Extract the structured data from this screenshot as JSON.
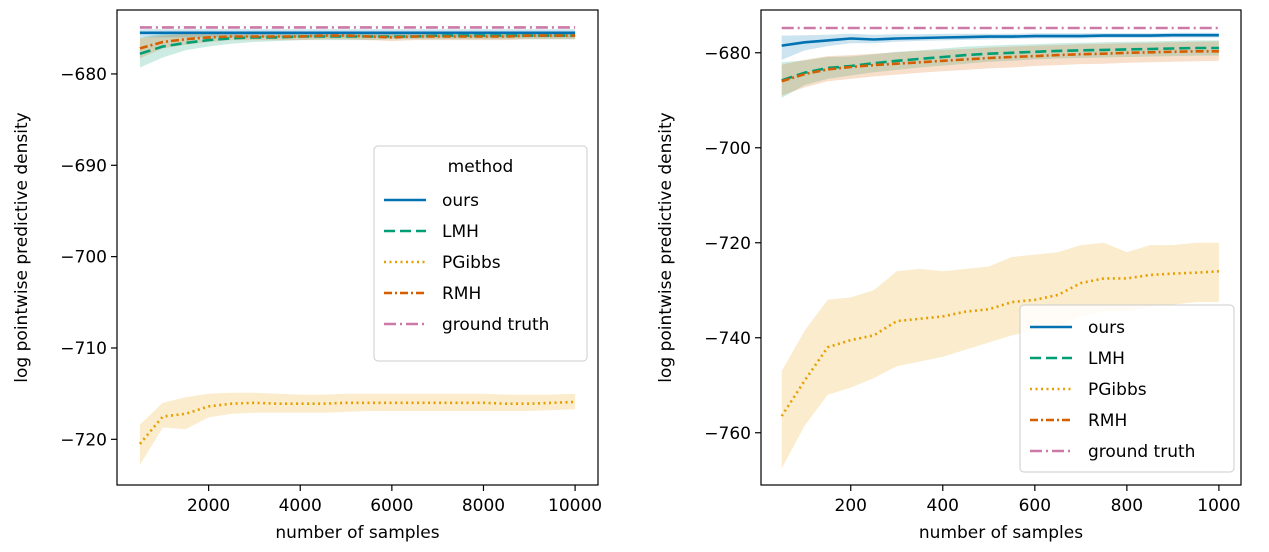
{
  "colors": {
    "ours": "#0072b2",
    "LMH": "#009e73",
    "PGibbs": "#e69f00",
    "RMH": "#d55e00",
    "ground_truth": "#cc79a7"
  },
  "chart_data": [
    {
      "type": "line",
      "xlabel": "number of samples",
      "ylabel": "log pointwise predictive density",
      "xlim": [
        0,
        10500
      ],
      "ylim": [
        -725,
        -673
      ],
      "xticks": [
        2000,
        4000,
        6000,
        8000,
        10000
      ],
      "yticks": [
        -720,
        -710,
        -700,
        -690,
        -680
      ],
      "legend": {
        "title": "method",
        "placement": "center-right"
      },
      "series": [
        {
          "name": "ours",
          "key": "ours",
          "style": "solid",
          "x": [
            500,
            1000,
            1500,
            2000,
            2500,
            3000,
            3500,
            4000,
            4500,
            5000,
            5500,
            6000,
            6500,
            7000,
            7500,
            8000,
            8500,
            9000,
            9500,
            10000
          ],
          "y": [
            -675.5,
            -675.5,
            -675.5,
            -675.5,
            -675.5,
            -675.5,
            -675.5,
            -675.5,
            -675.5,
            -675.5,
            -675.5,
            -675.5,
            -675.5,
            -675.5,
            -675.5,
            -675.5,
            -675.5,
            -675.5,
            -675.5,
            -675.5
          ],
          "lower": [
            -676.0,
            -676.0,
            -676.0,
            -676.0,
            -676.0,
            -676.0,
            -676.0,
            -676.0,
            -676.0,
            -676.0,
            -676.0,
            -676.0,
            -676.0,
            -676.0,
            -676.0,
            -676.0,
            -676.0,
            -676.0,
            -676.0,
            -676.0
          ],
          "upper": [
            -675.1,
            -675.1,
            -675.1,
            -675.1,
            -675.1,
            -675.1,
            -675.1,
            -675.1,
            -675.1,
            -675.1,
            -675.1,
            -675.1,
            -675.1,
            -675.1,
            -675.1,
            -675.1,
            -675.1,
            -675.1,
            -675.1,
            -675.1
          ]
        },
        {
          "name": "LMH",
          "key": "LMH",
          "style": "dashed",
          "x": [
            500,
            1000,
            1500,
            2000,
            2500,
            3000,
            3500,
            4000,
            4500,
            5000,
            5500,
            6000,
            6500,
            7000,
            7500,
            8000,
            8500,
            9000,
            9500,
            10000
          ],
          "y": [
            -677.8,
            -677.0,
            -676.6,
            -676.3,
            -676.1,
            -676.0,
            -676.0,
            -675.9,
            -675.9,
            -675.9,
            -675.9,
            -675.9,
            -675.9,
            -675.8,
            -675.8,
            -675.8,
            -675.8,
            -675.8,
            -675.8,
            -675.8
          ],
          "lower": [
            -679.3,
            -678.2,
            -677.4,
            -677.0,
            -676.7,
            -676.5,
            -676.4,
            -676.3,
            -676.3,
            -676.3,
            -676.3,
            -676.2,
            -676.2,
            -676.2,
            -676.2,
            -676.2,
            -676.2,
            -676.2,
            -676.2,
            -676.2
          ],
          "upper": [
            -676.0,
            -675.6,
            -675.5,
            -675.4,
            -675.4,
            -675.4,
            -675.4,
            -675.4,
            -675.4,
            -675.4,
            -675.4,
            -675.4,
            -675.4,
            -675.4,
            -675.4,
            -675.4,
            -675.4,
            -675.4,
            -675.4,
            -675.4
          ]
        },
        {
          "name": "PGibbs",
          "key": "PGibbs",
          "style": "dotted",
          "x": [
            500,
            1000,
            1500,
            2000,
            2500,
            3000,
            3500,
            4000,
            4500,
            5000,
            5500,
            6000,
            6500,
            7000,
            7500,
            8000,
            8500,
            9000,
            9500,
            10000
          ],
          "y": [
            -720.5,
            -717.5,
            -717.2,
            -716.4,
            -716.1,
            -716.0,
            -716.1,
            -716.1,
            -716.1,
            -716.0,
            -716.0,
            -716.0,
            -716.0,
            -716.0,
            -716.0,
            -716.0,
            -716.1,
            -716.1,
            -716.0,
            -715.9
          ],
          "lower": [
            -722.8,
            -718.7,
            -718.9,
            -717.6,
            -717.2,
            -717.1,
            -717.1,
            -717.1,
            -717.1,
            -717.0,
            -716.9,
            -716.9,
            -716.9,
            -716.9,
            -716.9,
            -716.9,
            -716.9,
            -716.9,
            -716.8,
            -716.7
          ],
          "upper": [
            -718.4,
            -716.0,
            -715.4,
            -715.0,
            -714.9,
            -714.9,
            -715.0,
            -715.1,
            -715.1,
            -715.0,
            -715.0,
            -715.0,
            -715.0,
            -715.0,
            -715.0,
            -715.0,
            -715.1,
            -715.1,
            -715.1,
            -715.0
          ]
        },
        {
          "name": "RMH",
          "key": "RMH",
          "style": "dashdot",
          "x": [
            500,
            1000,
            1500,
            2000,
            2500,
            3000,
            3500,
            4000,
            4500,
            5000,
            5500,
            6000,
            6500,
            7000,
            7500,
            8000,
            8500,
            9000,
            9500,
            10000
          ],
          "y": [
            -677.2,
            -676.5,
            -676.2,
            -676.0,
            -675.9,
            -675.9,
            -675.9,
            -675.9,
            -675.8,
            -675.8,
            -675.9,
            -676.0,
            -675.9,
            -675.9,
            -675.9,
            -675.9,
            -675.9,
            -675.8,
            -675.8,
            -675.8
          ],
          "lower": [
            -678.3,
            -677.2,
            -676.8,
            -676.5,
            -676.3,
            -676.3,
            -676.3,
            -676.3,
            -676.2,
            -676.2,
            -676.3,
            -676.4,
            -676.3,
            -676.3,
            -676.3,
            -676.3,
            -676.3,
            -676.2,
            -676.2,
            -676.2
          ],
          "upper": [
            -676.1,
            -675.8,
            -675.6,
            -675.5,
            -675.5,
            -675.5,
            -675.5,
            -675.5,
            -675.4,
            -675.4,
            -675.5,
            -675.6,
            -675.5,
            -675.5,
            -675.5,
            -675.5,
            -675.5,
            -675.4,
            -675.4,
            -675.4
          ]
        },
        {
          "name": "ground truth",
          "key": "ground_truth",
          "style": "dashdotdot",
          "x": [
            500,
            10000
          ],
          "y": [
            -674.9,
            -674.9
          ]
        }
      ]
    },
    {
      "type": "line",
      "xlabel": "number of samples",
      "ylabel": "log pointwise predictive density",
      "xlim": [
        5,
        1048
      ],
      "ylim": [
        -771,
        -671
      ],
      "xticks": [
        200,
        400,
        600,
        800,
        1000
      ],
      "yticks": [
        -760,
        -740,
        -720,
        -700,
        -680
      ],
      "legend": {
        "title": "",
        "placement": "lower-right"
      },
      "series": [
        {
          "name": "ours",
          "key": "ours",
          "style": "solid",
          "x": [
            50,
            100,
            150,
            200,
            250,
            300,
            350,
            400,
            450,
            500,
            550,
            600,
            650,
            700,
            750,
            800,
            850,
            900,
            950,
            1000
          ],
          "y": [
            -678.5,
            -677.8,
            -677.4,
            -677.0,
            -677.2,
            -677.0,
            -676.9,
            -676.8,
            -676.7,
            -676.6,
            -676.6,
            -676.5,
            -676.5,
            -676.5,
            -676.4,
            -676.4,
            -676.4,
            -676.3,
            -676.3,
            -676.3
          ],
          "lower": [
            -681.5,
            -679.5,
            -678.6,
            -678.0,
            -678.0,
            -677.7,
            -677.5,
            -677.4,
            -677.3,
            -677.2,
            -677.1,
            -677.0,
            -677.0,
            -677.0,
            -676.9,
            -676.9,
            -676.9,
            -676.8,
            -676.8,
            -676.8
          ],
          "upper": [
            -676.4,
            -676.3,
            -676.2,
            -676.0,
            -676.2,
            -676.1,
            -676.1,
            -676.0,
            -676.0,
            -676.0,
            -676.0,
            -675.9,
            -675.9,
            -675.9,
            -675.9,
            -675.9,
            -675.9,
            -675.8,
            -675.8,
            -675.8
          ]
        },
        {
          "name": "LMH",
          "key": "LMH",
          "style": "dashed",
          "x": [
            50,
            100,
            150,
            200,
            250,
            300,
            350,
            400,
            450,
            500,
            550,
            600,
            650,
            700,
            750,
            800,
            850,
            900,
            950,
            1000
          ],
          "y": [
            -685.8,
            -684.2,
            -683.2,
            -682.8,
            -682.2,
            -681.7,
            -681.3,
            -680.9,
            -680.5,
            -680.2,
            -680.0,
            -679.8,
            -679.6,
            -679.5,
            -679.4,
            -679.3,
            -679.2,
            -679.1,
            -679.0,
            -679.0
          ],
          "lower": [
            -689.5,
            -686.8,
            -685.5,
            -684.8,
            -684.1,
            -683.6,
            -683.1,
            -682.7,
            -682.3,
            -681.9,
            -681.7,
            -681.4,
            -681.2,
            -681.1,
            -681.0,
            -680.9,
            -680.8,
            -680.7,
            -680.6,
            -680.6
          ],
          "upper": [
            -682.0,
            -681.6,
            -680.9,
            -680.8,
            -680.3,
            -679.8,
            -679.5,
            -679.1,
            -678.7,
            -678.5,
            -678.3,
            -678.2,
            -678.0,
            -677.9,
            -677.8,
            -677.7,
            -677.6,
            -677.5,
            -677.4,
            -677.4
          ]
        },
        {
          "name": "PGibbs",
          "key": "PGibbs",
          "style": "dotted",
          "x": [
            50,
            100,
            150,
            200,
            250,
            300,
            350,
            400,
            450,
            500,
            550,
            600,
            650,
            700,
            750,
            800,
            850,
            900,
            950,
            1000
          ],
          "y": [
            -756.5,
            -749.0,
            -742.0,
            -740.5,
            -739.5,
            -736.5,
            -736.0,
            -735.5,
            -734.5,
            -734.0,
            -732.5,
            -732.0,
            -731.0,
            -728.5,
            -727.5,
            -727.5,
            -726.8,
            -726.5,
            -726.3,
            -726.0
          ],
          "lower": [
            -767.5,
            -758.5,
            -752.0,
            -750.5,
            -748.5,
            -746.0,
            -745.0,
            -744.0,
            -742.5,
            -741.0,
            -739.5,
            -738.5,
            -737.5,
            -735.5,
            -734.5,
            -734.5,
            -733.5,
            -733.0,
            -732.5,
            -732.5
          ],
          "upper": [
            -747.0,
            -738.5,
            -732.0,
            -731.5,
            -730.0,
            -726.0,
            -725.5,
            -726.0,
            -725.5,
            -725.0,
            -723.0,
            -722.5,
            -722.0,
            -720.5,
            -720.0,
            -722.0,
            -720.5,
            -720.5,
            -720.0,
            -720.0
          ]
        },
        {
          "name": "RMH",
          "key": "RMH",
          "style": "dashdot",
          "x": [
            50,
            100,
            150,
            200,
            250,
            300,
            350,
            400,
            450,
            500,
            550,
            600,
            650,
            700,
            750,
            800,
            850,
            900,
            950,
            1000
          ],
          "y": [
            -686.0,
            -684.5,
            -683.5,
            -683.0,
            -682.6,
            -682.3,
            -682.0,
            -681.7,
            -681.4,
            -681.1,
            -680.9,
            -680.7,
            -680.5,
            -680.3,
            -680.2,
            -680.0,
            -679.9,
            -679.8,
            -679.7,
            -679.7
          ],
          "lower": [
            -689.0,
            -687.3,
            -686.0,
            -685.5,
            -685.0,
            -684.6,
            -684.2,
            -683.9,
            -683.6,
            -683.3,
            -683.1,
            -682.8,
            -682.6,
            -682.4,
            -682.3,
            -682.1,
            -682.0,
            -681.9,
            -681.8,
            -681.7
          ],
          "upper": [
            -682.5,
            -681.5,
            -680.7,
            -680.5,
            -680.2,
            -679.9,
            -679.6,
            -679.4,
            -679.2,
            -678.9,
            -678.7,
            -678.5,
            -678.4,
            -678.2,
            -678.1,
            -678.0,
            -677.9,
            -677.8,
            -677.7,
            -677.6
          ]
        },
        {
          "name": "ground truth",
          "key": "ground_truth",
          "style": "dashdotdot",
          "x": [
            50,
            1000
          ],
          "y": [
            -674.8,
            -674.8
          ]
        }
      ]
    }
  ]
}
